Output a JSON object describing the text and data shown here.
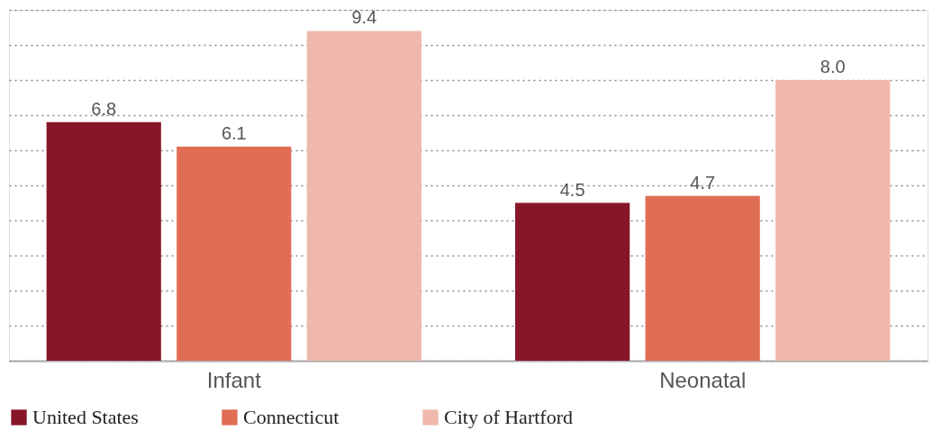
{
  "chart_data": {
    "type": "bar",
    "categories": [
      "Infant",
      "Neonatal"
    ],
    "series": [
      {
        "name": "United States",
        "color": "#861628",
        "values": [
          6.8,
          4.5
        ],
        "value_labels": [
          "6.8",
          "4.5"
        ]
      },
      {
        "name": "Connecticut",
        "color": "#e06e55",
        "values": [
          6.1,
          4.7
        ],
        "value_labels": [
          "6.1",
          "4.7"
        ]
      },
      {
        "name": "City of Hartford",
        "color": "#f0b8ad",
        "values": [
          9.4,
          8.0
        ],
        "value_labels": [
          "9.4",
          "8.0"
        ]
      }
    ],
    "ylim": [
      0,
      10
    ],
    "tick_labels": "x",
    "grid": "y",
    "legend": "bottom"
  }
}
